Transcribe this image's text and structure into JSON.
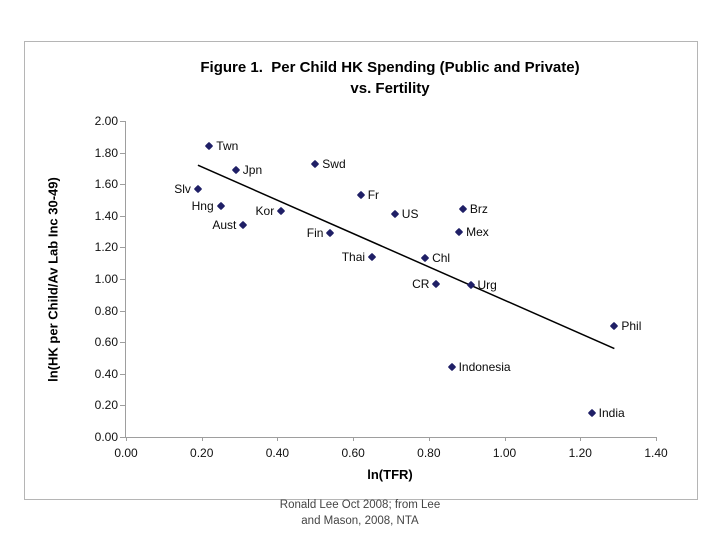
{
  "slide": {
    "caption": {
      "line1": "Ronald Lee Oct 2008; from Lee",
      "line2": "and Mason, 2008, NTA"
    }
  },
  "chart_data": {
    "type": "scatter",
    "title_line1": "Figure 1.  Per Child HK Spending (Public and Private)",
    "title_line2": "vs. Fertility",
    "xlabel": "ln(TFR)",
    "ylabel": "ln(HK per Child/Av Lab Inc 30-49)",
    "xlim": [
      0.0,
      1.4
    ],
    "ylim": [
      0.0,
      2.0
    ],
    "x_ticks": [
      "0.00",
      "0.20",
      "0.40",
      "0.60",
      "0.80",
      "1.00",
      "1.20",
      "1.40"
    ],
    "y_ticks": [
      "0.00",
      "0.20",
      "0.40",
      "0.60",
      "0.80",
      "1.00",
      "1.20",
      "1.40",
      "1.60",
      "1.80",
      "2.00"
    ],
    "grid": false,
    "legend_position": "none",
    "marker_color": "#1f1f66",
    "axis_color": "#9e9e9e",
    "trendline": {
      "x1": 0.19,
      "y1": 1.72,
      "x2": 1.29,
      "y2": 0.56,
      "color": "#000000",
      "width": 1.5
    },
    "points": [
      {
        "label": "Twn",
        "x": 0.22,
        "y": 1.84,
        "label_side": "right"
      },
      {
        "label": "Jpn",
        "x": 0.29,
        "y": 1.69,
        "label_side": "right"
      },
      {
        "label": "Swd",
        "x": 0.5,
        "y": 1.73,
        "label_side": "right"
      },
      {
        "label": "Slv",
        "x": 0.19,
        "y": 1.57,
        "label_side": "left"
      },
      {
        "label": "Hng",
        "x": 0.25,
        "y": 1.46,
        "label_side": "left"
      },
      {
        "label": "Kor",
        "x": 0.41,
        "y": 1.43,
        "label_side": "left"
      },
      {
        "label": "Aust",
        "x": 0.31,
        "y": 1.34,
        "label_side": "left"
      },
      {
        "label": "Fr",
        "x": 0.62,
        "y": 1.53,
        "label_side": "right"
      },
      {
        "label": "Fin",
        "x": 0.54,
        "y": 1.29,
        "label_side": "left"
      },
      {
        "label": "US",
        "x": 0.71,
        "y": 1.41,
        "label_side": "right"
      },
      {
        "label": "Brz",
        "x": 0.89,
        "y": 1.44,
        "label_side": "right"
      },
      {
        "label": "Mex",
        "x": 0.88,
        "y": 1.3,
        "label_side": "right"
      },
      {
        "label": "Thai",
        "x": 0.65,
        "y": 1.14,
        "label_side": "left"
      },
      {
        "label": "Chl",
        "x": 0.79,
        "y": 1.13,
        "label_side": "right"
      },
      {
        "label": "CR",
        "x": 0.82,
        "y": 0.97,
        "label_side": "left"
      },
      {
        "label": "Urg",
        "x": 0.91,
        "y": 0.96,
        "label_side": "right"
      },
      {
        "label": "Phil",
        "x": 1.29,
        "y": 0.7,
        "label_side": "right"
      },
      {
        "label": "Indonesia",
        "x": 0.86,
        "y": 0.44,
        "label_side": "right"
      },
      {
        "label": "India",
        "x": 1.23,
        "y": 0.15,
        "label_side": "right"
      }
    ]
  }
}
